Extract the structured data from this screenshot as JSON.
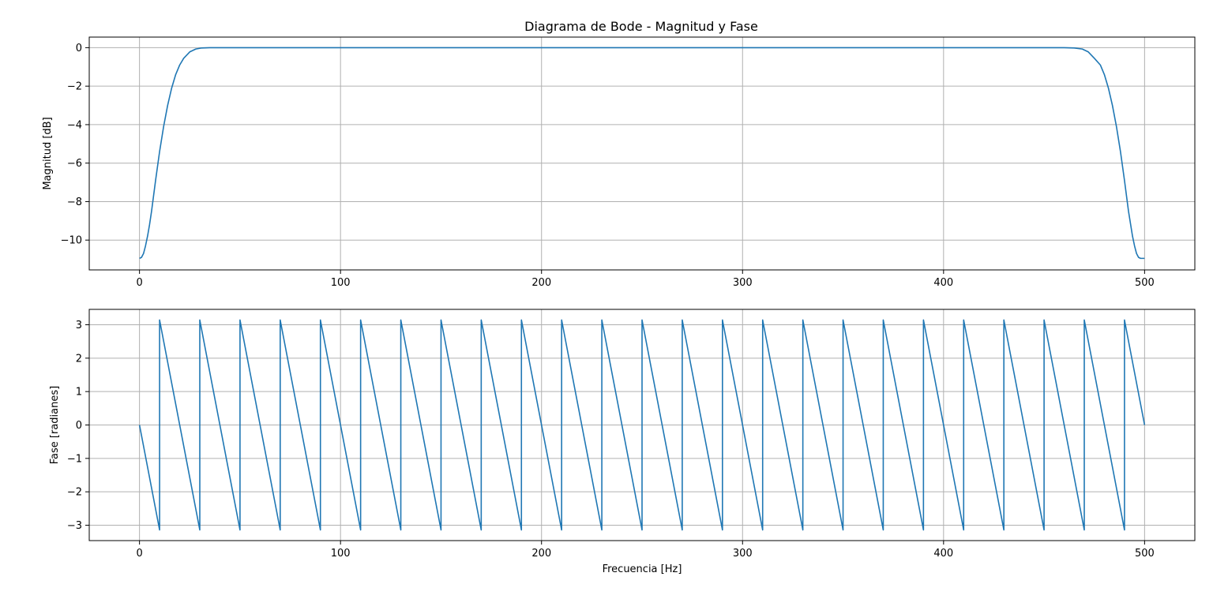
{
  "figure": {
    "title": "Diagrama de Bode - Magnitud y Fase"
  },
  "chart_data": [
    {
      "type": "line",
      "title": "Diagrama de Bode - Magnitud y Fase",
      "xlabel": "",
      "ylabel": "Magnitud [dB]",
      "xlim": [
        -25,
        525
      ],
      "ylim": [
        -11.55,
        0.55
      ],
      "xticks": [
        0,
        100,
        200,
        300,
        400,
        500
      ],
      "xtick_labels": [
        "0",
        "100",
        "200",
        "300",
        "400",
        "500"
      ],
      "yticks": [
        0,
        -2,
        -4,
        -6,
        -8,
        -10
      ],
      "ytick_labels": [
        "0",
        "−2",
        "−4",
        "−6",
        "−8",
        "−10"
      ],
      "grid": true,
      "color": "#1f77b4",
      "series": [
        {
          "x": [
            0,
            1,
            2,
            3,
            4,
            5,
            6,
            8,
            10,
            12,
            14,
            16,
            18,
            20,
            22,
            25,
            28,
            31,
            35,
            40,
            60,
            100,
            200,
            300,
            400,
            440,
            460,
            465,
            469,
            472,
            475,
            478,
            480,
            482,
            484,
            486,
            488,
            490,
            492,
            494,
            495,
            496,
            497,
            498,
            499,
            500
          ],
          "y": [
            -10.95,
            -10.9,
            -10.7,
            -10.3,
            -9.8,
            -9.2,
            -8.5,
            -6.9,
            -5.4,
            -4.1,
            -3.0,
            -2.1,
            -1.4,
            -0.9,
            -0.55,
            -0.22,
            -0.07,
            -0.015,
            0,
            0,
            0,
            0,
            0,
            0,
            0,
            0,
            0,
            -0.015,
            -0.07,
            -0.22,
            -0.55,
            -0.9,
            -1.4,
            -2.1,
            -3.0,
            -4.1,
            -5.4,
            -6.9,
            -8.5,
            -9.8,
            -10.3,
            -10.7,
            -10.9,
            -10.95,
            -10.95,
            -10.95
          ]
        }
      ]
    },
    {
      "type": "line",
      "title": "",
      "xlabel": "Frecuencia [Hz]",
      "ylabel": "Fase [radianes]",
      "xlim": [
        -25,
        525
      ],
      "ylim": [
        -3.46,
        3.46
      ],
      "xticks": [
        0,
        100,
        200,
        300,
        400,
        500
      ],
      "xtick_labels": [
        "0",
        "100",
        "200",
        "300",
        "400",
        "500"
      ],
      "yticks": [
        3,
        2,
        1,
        0,
        -1,
        -2,
        -3
      ],
      "ytick_labels": [
        "3",
        "2",
        "1",
        "0",
        "−1",
        "−2",
        "−3"
      ],
      "grid": true,
      "color": "#1f77b4",
      "series": [
        {
          "x": [
            0,
            10,
            10,
            30,
            30,
            50,
            50,
            70,
            70,
            90,
            90,
            110,
            110,
            130,
            130,
            150,
            150,
            170,
            170,
            190,
            190,
            210,
            210,
            230,
            230,
            250,
            250,
            270,
            270,
            290,
            290,
            310,
            310,
            330,
            330,
            350,
            350,
            370,
            370,
            390,
            390,
            410,
            410,
            430,
            430,
            450,
            450,
            470,
            470,
            490,
            490,
            500
          ],
          "y": [
            0,
            -3.1416,
            3.1416,
            -3.1416,
            3.1416,
            -3.1416,
            3.1416,
            -3.1416,
            3.1416,
            -3.1416,
            3.1416,
            -3.1416,
            3.1416,
            -3.1416,
            3.1416,
            -3.1416,
            3.1416,
            -3.1416,
            3.1416,
            -3.1416,
            3.1416,
            -3.1416,
            3.1416,
            -3.1416,
            3.1416,
            -3.1416,
            3.1416,
            -3.1416,
            3.1416,
            -3.1416,
            3.1416,
            -3.1416,
            3.1416,
            -3.1416,
            3.1416,
            -3.1416,
            3.1416,
            -3.1416,
            3.1416,
            -3.1416,
            3.1416,
            -3.1416,
            3.1416,
            -3.1416,
            3.1416,
            -3.1416,
            3.1416,
            -3.1416,
            3.1416,
            -3.1416,
            3.1416,
            0
          ]
        }
      ]
    }
  ]
}
